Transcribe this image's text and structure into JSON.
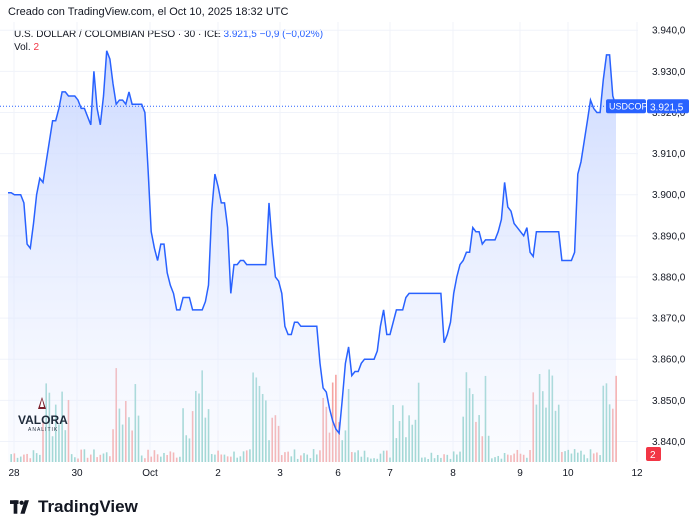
{
  "header": {
    "created": "Creado con TradingView.com, el Oct 10, 2025 18:32 UTC",
    "symbol_title": "U.S. DOLLAR / COLOMBIAN PESO · 30 · ICE",
    "last_value": "3.921,5",
    "change": "−0,9 (−0,02%)",
    "vol_label": "Vol.",
    "vol_value": "2"
  },
  "price_tag": {
    "symbol": "USDCOP",
    "value": "3.921,5"
  },
  "volume_tag": "2",
  "footer": {
    "brand": "TradingView"
  },
  "watermark": {
    "brand": "VALORA",
    "sub": "ANALITIK"
  },
  "colors": {
    "line": "#2962ff",
    "area_top": "#c9d7ff",
    "up": "#26a69a",
    "down": "#ef5350",
    "grid": "#f0f3fa"
  },
  "chart_data": {
    "type": "area",
    "yaxis": {
      "min": 3835,
      "max": 3942,
      "ticks": [
        3840,
        3850,
        3860,
        3870,
        3880,
        3890,
        3900,
        3910,
        3920,
        3930,
        3940
      ],
      "tick_labels": [
        "3.840,0",
        "3.850,0",
        "3.860,0",
        "3.870,0",
        "3.880,0",
        "3.890,0",
        "3.900,0",
        "3.910,0",
        "3.920,0",
        "3.930,0",
        "3.940,0"
      ]
    },
    "xaxis": {
      "labels": [
        "28",
        "30",
        "Oct",
        "2",
        "3",
        "6",
        "7",
        "8",
        "9",
        "10",
        "12"
      ]
    },
    "series": [
      {
        "values": [
          3900.5,
          3900.5,
          3900,
          3900,
          3900,
          3898,
          3888,
          3887,
          3893,
          3900,
          3904,
          3903,
          3908,
          3913,
          3918,
          3918,
          3921,
          3925,
          3925,
          3924,
          3924,
          3924,
          3923,
          3921,
          3921,
          3919,
          3917,
          3930,
          3921,
          3917,
          3924,
          3935,
          3933,
          3927,
          3922,
          3923,
          3923,
          3922,
          3925,
          3922,
          3922,
          3922,
          3922,
          3920,
          3906,
          3891,
          3887,
          3884,
          3888,
          3888,
          3881,
          3878,
          3876,
          3872,
          3872,
          3875,
          3875,
          3875,
          3872,
          3872,
          3872,
          3872,
          3874,
          3878,
          3896,
          3905,
          3902,
          3898,
          3898,
          3892,
          3876,
          3883,
          3883,
          3884,
          3884,
          3883,
          3883,
          3883,
          3883,
          3883,
          3883,
          3883,
          3898,
          3888,
          3880,
          3879,
          3876,
          3868,
          3866,
          3866,
          3869,
          3869,
          3868,
          3868,
          3868,
          3868,
          3868,
          3868,
          3859,
          3853,
          3852,
          3848,
          3845,
          3843,
          3842,
          3850,
          3859,
          3863,
          3856,
          3857,
          3857,
          3859,
          3860,
          3860,
          3860,
          3860,
          3862,
          3868,
          3872,
          3866,
          3866,
          3869,
          3872,
          3872,
          3872,
          3875,
          3876,
          3876,
          3876,
          3876,
          3876,
          3876,
          3876,
          3876,
          3876,
          3876,
          3876,
          3864,
          3866,
          3869,
          3876,
          3880,
          3883,
          3884,
          3886,
          3886,
          3892,
          3891,
          3891,
          3888,
          3889,
          3889,
          3889,
          3889,
          3891,
          3894,
          3903,
          3897,
          3896,
          3893,
          3892,
          3891,
          3890,
          3892,
          3886,
          3885,
          3891,
          3891,
          3891,
          3891,
          3891,
          3891,
          3891,
          3891,
          3884,
          3884,
          3884,
          3884,
          3886,
          3905,
          3908,
          3913,
          3918,
          3923,
          3921,
          3920,
          3920,
          3928,
          3934,
          3934,
          3924,
          3921.5
        ]
      }
    ],
    "volume": {
      "last": 2
    }
  }
}
